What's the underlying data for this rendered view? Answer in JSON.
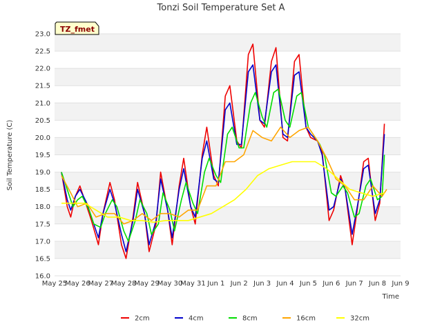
{
  "chart_data": {
    "type": "line",
    "title": "Tonzi Soil Temperature Set A",
    "xlabel": "Time",
    "ylabel": "Soil Temperature (C)",
    "tag": "TZ_fmet",
    "ylim": [
      16.0,
      23.0
    ],
    "xlim": [
      0,
      15
    ],
    "yticks": [
      16.0,
      16.5,
      17.0,
      17.5,
      18.0,
      18.5,
      19.0,
      19.5,
      20.0,
      20.5,
      21.0,
      21.5,
      22.0,
      22.5,
      23.0
    ],
    "ytick_labels": [
      "16.0",
      "16.5",
      "17.0",
      "17.5",
      "18.0",
      "18.5",
      "19.0",
      "19.5",
      "20.0",
      "20.5",
      "21.0",
      "21.5",
      "22.0",
      "22.5",
      "23.0"
    ],
    "xtick_labels": [
      "May 25",
      "May 26",
      "May 27",
      "May 28",
      "May 29",
      "May 30",
      "May 31",
      "Jun 1",
      "Jun 2",
      "Jun 3",
      "Jun 4",
      "Jun 5",
      "Jun 6",
      "Jun 7",
      "Jun 8",
      "Jun 9"
    ],
    "legend_position": "bottom",
    "grid": "alternating horizontal bands",
    "series": [
      {
        "name": "2cm",
        "color": "#ee0000",
        "x": [
          0.3,
          0.55,
          0.7,
          0.9,
          1.1,
          1.4,
          1.6,
          1.9,
          2.1,
          2.4,
          2.6,
          2.9,
          3.1,
          3.4,
          3.6,
          3.9,
          4.1,
          4.4,
          4.6,
          4.9,
          5.1,
          5.4,
          5.6,
          5.9,
          6.1,
          6.4,
          6.6,
          6.9,
          7.1,
          7.4,
          7.6,
          7.9,
          8.1,
          8.4,
          8.6,
          8.9,
          9.1,
          9.4,
          9.6,
          9.9,
          10.1,
          10.4,
          10.6,
          10.9,
          11.1,
          11.4,
          11.6,
          11.9,
          12.1,
          12.4,
          12.6,
          12.9,
          13.1,
          13.4,
          13.6,
          13.9,
          14.1,
          14.3
        ],
        "y": [
          19.0,
          18.0,
          17.7,
          18.3,
          18.6,
          18.0,
          17.6,
          16.9,
          17.8,
          18.7,
          18.2,
          16.9,
          16.5,
          17.7,
          18.7,
          17.8,
          16.7,
          17.5,
          19.0,
          17.9,
          16.9,
          18.6,
          19.4,
          18.0,
          17.5,
          19.5,
          20.3,
          18.9,
          18.6,
          21.2,
          21.5,
          19.9,
          19.7,
          22.4,
          22.7,
          20.5,
          20.3,
          22.2,
          22.6,
          20.0,
          19.9,
          22.2,
          22.4,
          20.3,
          20.0,
          19.9,
          19.6,
          17.6,
          17.9,
          18.9,
          18.5,
          16.9,
          17.8,
          19.3,
          19.4,
          17.6,
          18.1,
          20.4
        ]
      },
      {
        "name": "4cm",
        "color": "#0000cc",
        "x": [
          0.3,
          0.55,
          0.7,
          0.9,
          1.1,
          1.4,
          1.6,
          1.9,
          2.1,
          2.4,
          2.6,
          2.9,
          3.1,
          3.4,
          3.6,
          3.9,
          4.1,
          4.4,
          4.6,
          4.9,
          5.1,
          5.4,
          5.6,
          5.9,
          6.1,
          6.4,
          6.6,
          6.9,
          7.1,
          7.4,
          7.6,
          7.9,
          8.1,
          8.4,
          8.6,
          8.9,
          9.1,
          9.4,
          9.6,
          9.9,
          10.1,
          10.4,
          10.6,
          10.9,
          11.1,
          11.4,
          11.6,
          11.9,
          12.1,
          12.4,
          12.6,
          12.9,
          13.1,
          13.4,
          13.6,
          13.9,
          14.1,
          14.3
        ],
        "y": [
          19.0,
          18.2,
          17.9,
          18.3,
          18.5,
          18.1,
          17.7,
          17.1,
          17.8,
          18.5,
          18.1,
          17.2,
          16.7,
          17.6,
          18.5,
          17.8,
          16.9,
          17.6,
          18.8,
          17.9,
          17.1,
          18.5,
          19.1,
          18.0,
          17.7,
          19.4,
          19.9,
          18.8,
          18.7,
          20.8,
          21.0,
          19.8,
          19.8,
          21.9,
          22.1,
          20.5,
          20.4,
          21.9,
          22.1,
          20.1,
          20.0,
          21.8,
          21.9,
          20.3,
          20.1,
          19.9,
          19.5,
          17.9,
          18.0,
          18.8,
          18.5,
          17.2,
          17.9,
          19.1,
          19.2,
          17.8,
          18.2,
          20.1
        ]
      },
      {
        "name": "8cm",
        "color": "#00dd00",
        "x": [
          0.3,
          0.6,
          0.8,
          1.0,
          1.2,
          1.5,
          1.7,
          2.0,
          2.2,
          2.5,
          2.7,
          3.0,
          3.2,
          3.5,
          3.7,
          4.0,
          4.2,
          4.5,
          4.7,
          5.0,
          5.2,
          5.5,
          5.7,
          6.0,
          6.2,
          6.5,
          6.7,
          7.0,
          7.2,
          7.5,
          7.7,
          8.0,
          8.2,
          8.5,
          8.7,
          9.0,
          9.2,
          9.5,
          9.7,
          10.0,
          10.2,
          10.5,
          10.7,
          11.0,
          11.2,
          11.5,
          11.7,
          12.0,
          12.2,
          12.5,
          12.7,
          13.0,
          13.2,
          13.5,
          13.7,
          14.0,
          14.2,
          14.3
        ],
        "y": [
          19.0,
          18.4,
          18.0,
          18.2,
          18.3,
          17.9,
          17.5,
          17.4,
          17.8,
          18.2,
          18.0,
          17.3,
          17.0,
          17.6,
          18.2,
          17.8,
          17.2,
          17.5,
          18.4,
          17.9,
          17.3,
          18.2,
          18.7,
          18.1,
          17.8,
          19.0,
          19.4,
          18.9,
          18.7,
          20.1,
          20.3,
          19.7,
          19.7,
          21.0,
          21.3,
          20.6,
          20.3,
          21.3,
          21.4,
          20.5,
          20.3,
          21.2,
          21.3,
          20.3,
          20.1,
          19.8,
          19.5,
          18.4,
          18.3,
          18.6,
          18.4,
          17.7,
          17.8,
          18.6,
          18.8,
          18.2,
          18.3,
          19.5
        ]
      },
      {
        "name": "16cm",
        "color": "#ffa500",
        "x": [
          0.3,
          0.7,
          1.0,
          1.4,
          1.8,
          2.2,
          2.6,
          3.0,
          3.4,
          3.8,
          4.2,
          4.6,
          5.0,
          5.4,
          5.8,
          6.2,
          6.6,
          7.0,
          7.4,
          7.8,
          8.2,
          8.6,
          9.0,
          9.4,
          9.8,
          10.2,
          10.6,
          11.0,
          11.4,
          11.8,
          12.2,
          12.6,
          13.0,
          13.4,
          13.8,
          14.2,
          14.4
        ],
        "y": [
          18.9,
          18.4,
          18.0,
          18.1,
          17.7,
          17.8,
          17.8,
          17.5,
          17.6,
          17.8,
          17.6,
          17.8,
          17.8,
          17.7,
          17.9,
          17.9,
          18.6,
          18.6,
          19.3,
          19.3,
          19.5,
          20.2,
          20.0,
          19.9,
          20.3,
          20.0,
          20.2,
          20.3,
          19.9,
          19.4,
          18.8,
          18.6,
          18.2,
          18.2,
          18.6,
          18.3,
          18.5
        ]
      },
      {
        "name": "32cm",
        "color": "#ffff00",
        "x": [
          0.3,
          0.8,
          1.3,
          1.8,
          2.3,
          2.8,
          3.3,
          3.8,
          4.3,
          4.8,
          5.3,
          5.8,
          6.3,
          6.8,
          7.3,
          7.8,
          8.3,
          8.8,
          9.3,
          9.8,
          10.3,
          10.8,
          11.3,
          11.8,
          12.3,
          12.8,
          13.3,
          13.8,
          14.3
        ],
        "y": [
          18.1,
          18.1,
          18.1,
          17.9,
          17.7,
          17.7,
          17.6,
          17.6,
          17.55,
          17.6,
          17.6,
          17.6,
          17.7,
          17.8,
          18.0,
          18.2,
          18.5,
          18.9,
          19.1,
          19.2,
          19.3,
          19.3,
          19.3,
          19.1,
          18.8,
          18.5,
          18.4,
          18.3,
          18.4
        ]
      }
    ]
  }
}
